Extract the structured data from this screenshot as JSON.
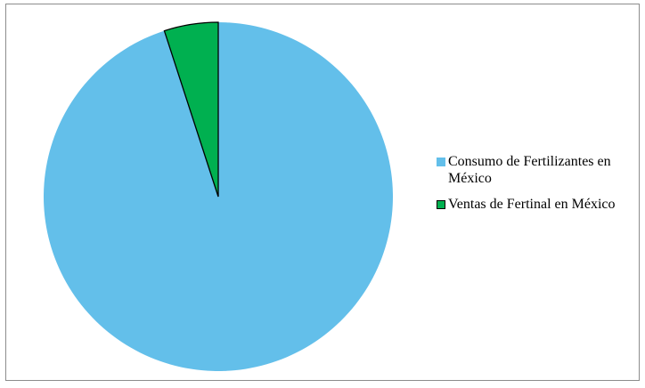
{
  "chart_data": {
    "type": "pie",
    "title": "",
    "slices": [
      {
        "label": "Consumo de Fertilizantes en México",
        "value": 95,
        "color": "#63bfea"
      },
      {
        "label": "Ventas de Fertinal en México",
        "value": 5,
        "color": "#00b050"
      }
    ],
    "legend_position": "right",
    "slice_border_color": "#000000"
  }
}
